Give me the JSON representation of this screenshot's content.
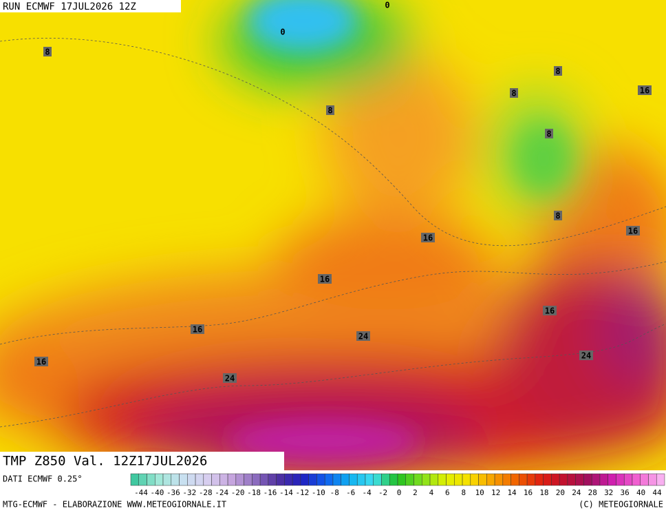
{
  "header": {
    "run": "RUN ECMWF 17JUL2026 12Z"
  },
  "map": {
    "title": "TMP Z850 Val. 12Z17JUL2026",
    "contour_labels": [
      0,
      0,
      8,
      8,
      8,
      8,
      8,
      8,
      16,
      16,
      16,
      16,
      16,
      16,
      16,
      24,
      24,
      24
    ]
  },
  "legend": {
    "source": "DATI ECMWF 0.25°",
    "labels": [
      -44,
      -40,
      -36,
      -32,
      -28,
      -24,
      -20,
      -18,
      -16,
      -14,
      -12,
      -10,
      -8,
      -6,
      -4,
      -2,
      0,
      2,
      4,
      6,
      8,
      10,
      12,
      14,
      16,
      18,
      20,
      24,
      28,
      32,
      36,
      40,
      44
    ]
  },
  "footer": {
    "credit": "MTG-ECMWF - ELABORAZIONE WWW.METEOGIORNALE.IT",
    "copyright": "(C) METEOGIORNALE"
  }
}
